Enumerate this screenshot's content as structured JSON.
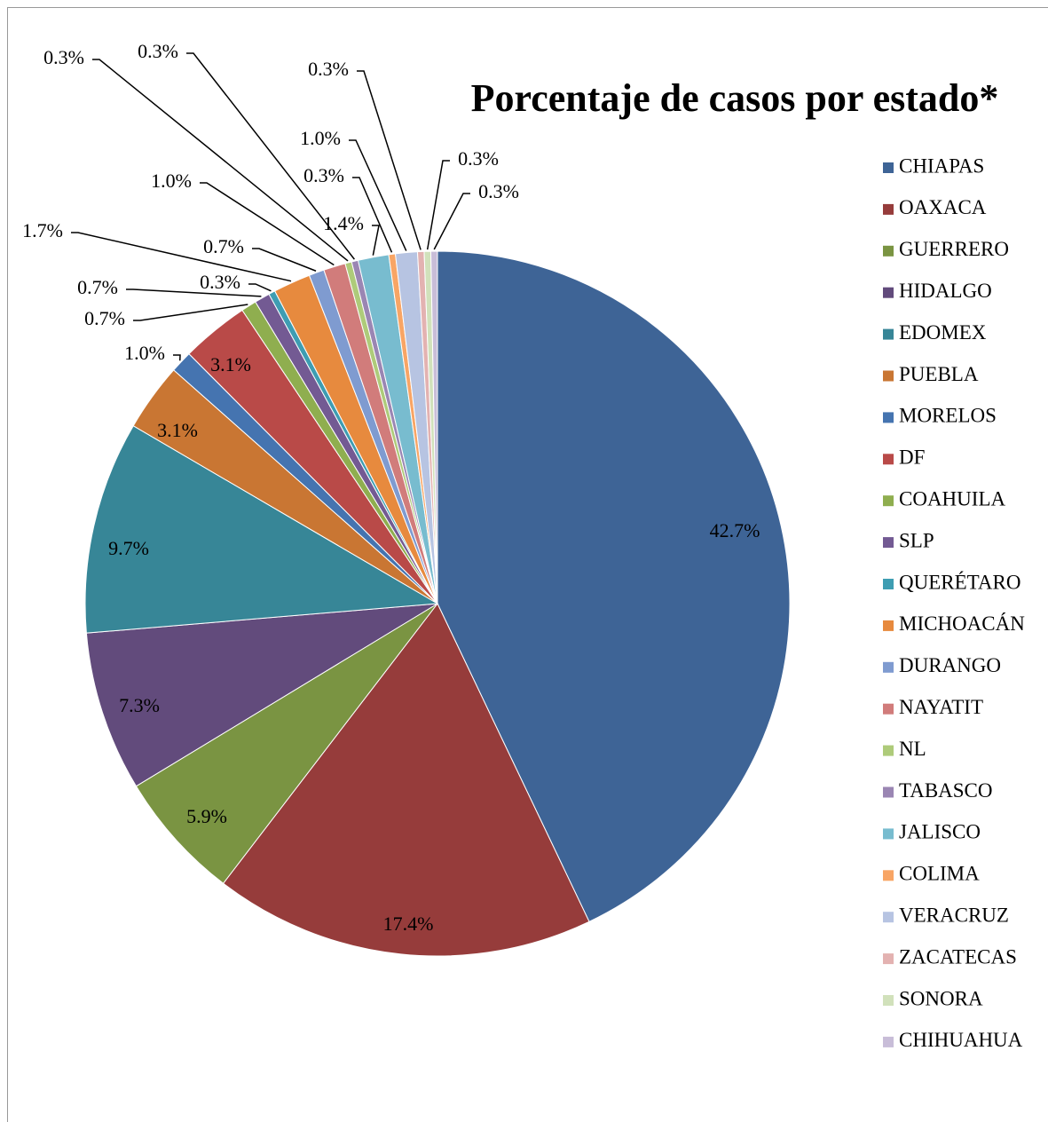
{
  "chart_data": {
    "type": "pie",
    "title": "Porcentaje de casos por estado*",
    "categories": [
      "CHIAPAS",
      "OAXACA",
      "GUERRERO",
      "HIDALGO",
      "EDOMEX",
      "PUEBLA",
      "MORELOS",
      "DF",
      "COAHUILA",
      "SLP",
      "QUERÉTARO",
      "MICHOACÁN",
      "DURANGO",
      "NAYATIT",
      "NL",
      "TABASCO",
      "JALISCO",
      "COLIMA",
      "VERACRUZ",
      "ZACATECAS",
      "SONORA",
      "CHIHUAHUA"
    ],
    "values": [
      42.7,
      17.4,
      5.9,
      7.3,
      9.7,
      3.1,
      1.0,
      3.1,
      0.7,
      0.7,
      0.3,
      1.7,
      0.7,
      1.0,
      0.3,
      0.3,
      1.4,
      0.3,
      1.0,
      0.3,
      0.3,
      0.3
    ],
    "value_labels": [
      "42.7%",
      "17.4%",
      "5.9%",
      "7.3%",
      "9.7%",
      "3.1%",
      "1.0%",
      "3.1%",
      "0.7%",
      "0.7%",
      "0.3%",
      "1.7%",
      "0.7%",
      "1.0%",
      "0.3%",
      "0.3%",
      "1.4%",
      "0.3%",
      "1.0%",
      "0.3%",
      "0.3%",
      "0.3%"
    ],
    "colors": [
      "#3e6496",
      "#963c3b",
      "#7a9442",
      "#624b7c",
      "#378697",
      "#c97633",
      "#4574b0",
      "#b94a48",
      "#8fae4f",
      "#735a93",
      "#3e9db2",
      "#e78a3e",
      "#7f9bd0",
      "#d17c7b",
      "#aecb7a",
      "#9a86b3",
      "#78bccf",
      "#f8a565",
      "#b7c4e2",
      "#e3b2b1",
      "#d1e1bb",
      "#c8bdd8"
    ],
    "legend": "right"
  }
}
